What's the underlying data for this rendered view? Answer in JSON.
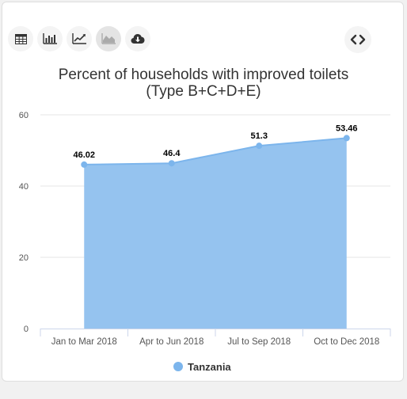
{
  "toolbar": {
    "buttons": [
      {
        "icon": "table-icon"
      },
      {
        "icon": "bar-chart-icon"
      },
      {
        "icon": "line-chart-icon"
      },
      {
        "icon": "area-chart-icon",
        "active": true
      },
      {
        "icon": "cloud-download-icon"
      }
    ],
    "embed_icon": "code-icon"
  },
  "colors": {
    "area_fill": "#95c3ef",
    "line": "#7cb5ec",
    "grid": "#e6e6e6",
    "axis_text": "#555555",
    "title": "#333333"
  },
  "chart_data": {
    "type": "area",
    "title": "Percent of households with improved toilets",
    "subtitle": "(Type B+C+D+E)",
    "categories": [
      "Jan to Mar 2018",
      "Apr to Jun 2018",
      "Jul to Sep 2018",
      "Oct to Dec 2018"
    ],
    "series": [
      {
        "name": "Tanzania",
        "values": [
          46.02,
          46.4,
          51.3,
          53.46
        ]
      }
    ],
    "data_labels": [
      "46.02",
      "46.4",
      "51.3",
      "53.46"
    ],
    "yticks": [
      0,
      20,
      40,
      60
    ],
    "ylim": [
      0,
      60
    ],
    "grid": true,
    "legend": "bottom-center"
  }
}
